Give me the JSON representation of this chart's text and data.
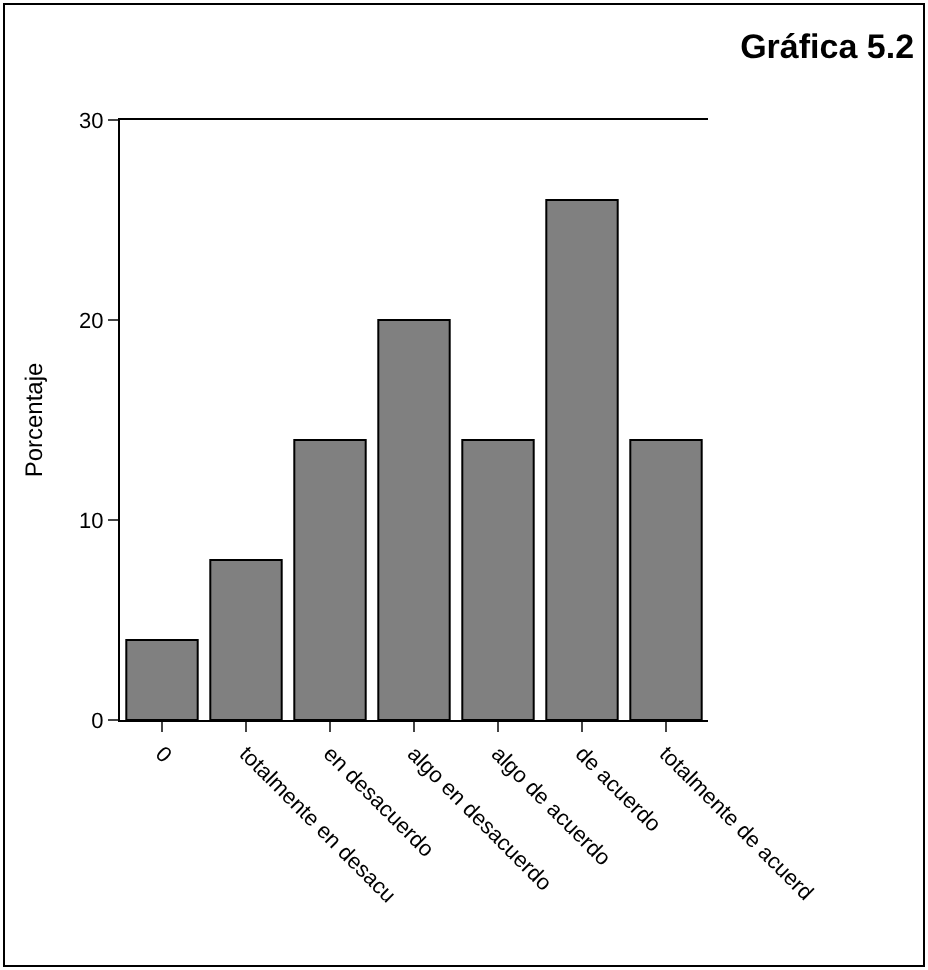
{
  "chart_data": {
    "type": "bar",
    "title": "Gráfica 5.2",
    "ylabel": "Porcentaje",
    "categories": [
      "0",
      "totalmente en desacu",
      "en desacuerdo",
      "algo en desacuerdo",
      "algo de acuerdo",
      "de acuerdo",
      "totalmente de acuerd"
    ],
    "values": [
      4,
      8,
      14,
      20,
      14,
      26,
      14
    ],
    "color": "#808080",
    "ylim": [
      0,
      30
    ],
    "yticks": [
      0,
      10,
      20,
      30
    ]
  }
}
